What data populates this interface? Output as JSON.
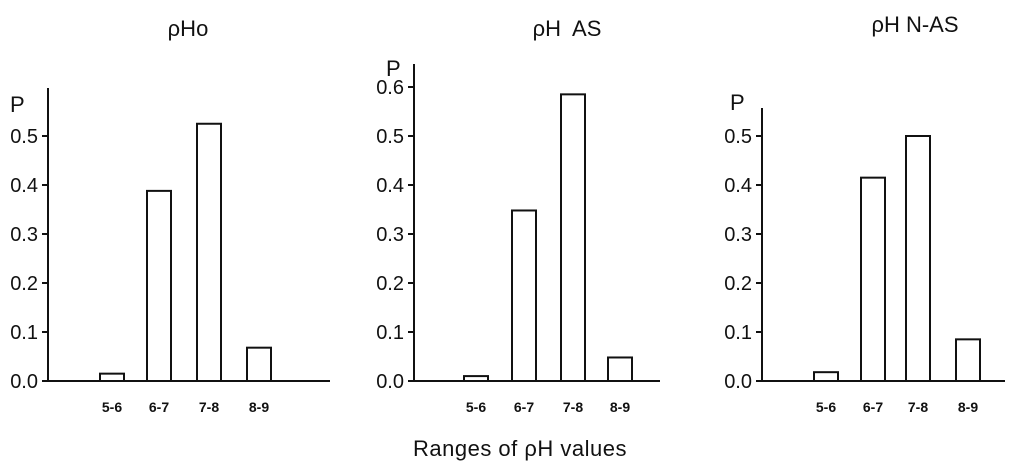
{
  "figure": {
    "xlabel": "Ranges of ρH values"
  },
  "chart_data": [
    {
      "type": "bar",
      "title": "ρHo",
      "ylabel": "P",
      "xlabel": "",
      "categories": [
        "5-6",
        "6-7",
        "7-8",
        "8-9"
      ],
      "values": [
        0.015,
        0.388,
        0.525,
        0.068
      ],
      "ylim": [
        0,
        0.5
      ],
      "yticks": [
        0.0,
        0.1,
        0.2,
        0.3,
        0.4,
        0.5
      ],
      "ytick_labels": [
        "0.0",
        "0.1",
        "0.2",
        "0.3",
        "0.4",
        "0.5"
      ],
      "grid": false,
      "legend": "none"
    },
    {
      "type": "bar",
      "title": "ρH  AS",
      "ylabel": "P",
      "xlabel": "",
      "categories": [
        "5-6",
        "6-7",
        "7-8",
        "8-9"
      ],
      "values": [
        0.01,
        0.348,
        0.585,
        0.048
      ],
      "ylim": [
        0,
        0.6
      ],
      "yticks": [
        0.0,
        0.1,
        0.2,
        0.3,
        0.4,
        0.5,
        0.6
      ],
      "ytick_labels": [
        "0.0",
        "0.1",
        "0.2",
        "0.3",
        "0.4",
        "0.5",
        "0.6"
      ],
      "grid": false,
      "legend": "none"
    },
    {
      "type": "bar",
      "title": "ρH N-AS",
      "ylabel": "P",
      "xlabel": "",
      "categories": [
        "5-6",
        "6-7",
        "7-8",
        "8-9"
      ],
      "values": [
        0.018,
        0.415,
        0.5,
        0.085
      ],
      "ylim": [
        0,
        0.5
      ],
      "yticks": [
        0.0,
        0.1,
        0.2,
        0.3,
        0.4,
        0.5
      ],
      "ytick_labels": [
        "0.0",
        "0.1",
        "0.2",
        "0.3",
        "0.4",
        "0.5"
      ],
      "grid": false,
      "legend": "none"
    }
  ]
}
